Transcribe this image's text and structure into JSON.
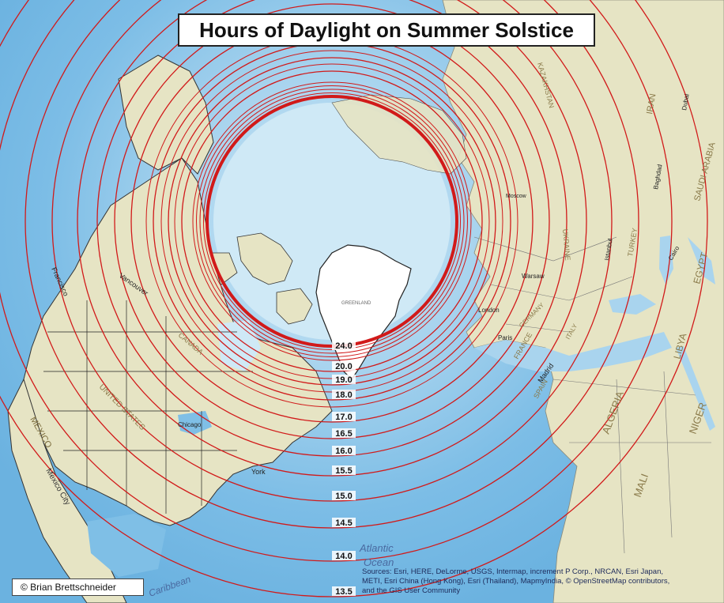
{
  "map": {
    "title": "Hours of Daylight on Summer Solstice",
    "credit": "© Brian Brettschneider",
    "sources_line1": "Sources: Esri, HERE, DeLorme, USGS, Intermap, increment P Corp., NRCAN, Esri Japan,",
    "sources_line2": "METI, Esri China (Hong Kong), Esri (Thailand), MapmyIndia, © OpenStreetMap contributors,",
    "sources_line3": "and the GIS User Community",
    "contour_labels": [
      "24.0",
      "20.0",
      "19.0",
      "18.0",
      "17.0",
      "16.5",
      "16.0",
      "15.5",
      "15.0",
      "14.5",
      "14.0",
      "13.5"
    ],
    "place_labels": {
      "greenland": "GREENLAND",
      "canada": "CANADA",
      "united_states": "UNITED STATES",
      "mexico": "MEXICO",
      "mexico_city": "Mexico City",
      "new_york": "York",
      "vancouver": "Vancouver",
      "francisco": "Francisco",
      "chicago": "Chicago",
      "kazakhstan": "KAZAKHSTAN",
      "iran": "IRAN",
      "saudi_arabia": "SAUDI ARABIA",
      "egypt": "EGYPT",
      "libya": "LIBYA",
      "algeria": "ALGERIA",
      "mali": "MALI",
      "niger": "NIGER",
      "ukraine": "UKRAINE",
      "turkey": "TURKEY",
      "spain": "SPAIN",
      "france": "FRANCE",
      "germany": "GERMANY",
      "italy": "ITALY",
      "moscow": "Moscow",
      "warsaw": "Warsaw",
      "paris": "Paris",
      "madrid": "Madrid",
      "istanbul": "Istanbul",
      "cairo": "Cairo",
      "baghdad": "Baghdad",
      "dubai": "Dubai",
      "london": "London",
      "atlantic": "Atlantic",
      "ocean": "Ocean",
      "caribbean": "Caribbean"
    },
    "colors": {
      "contour": "#d11a1a",
      "ocean": "#bfe0f2",
      "deep_ocean": "#5aaad8",
      "land": "#e8e6c8",
      "ice": "#ffffff"
    }
  }
}
